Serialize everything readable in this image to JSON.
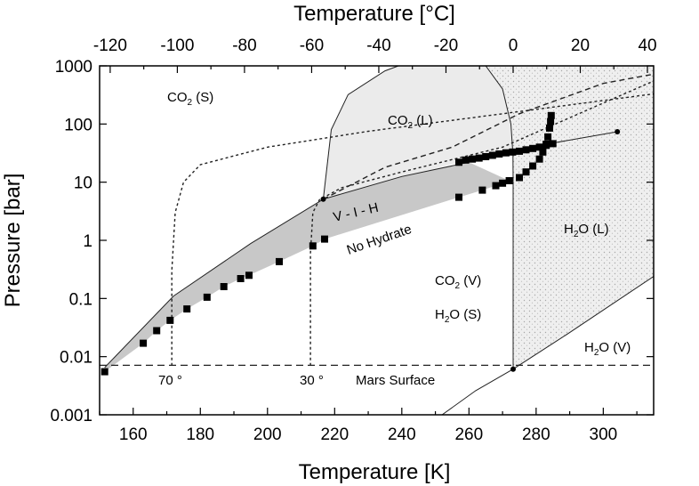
{
  "chart_data": {
    "type": "line",
    "top_xlabel": "Temperature [°C]",
    "xlabel": "Temperature [K]",
    "ylabel": "Pressure [bar]",
    "xlim": [
      150,
      315
    ],
    "ylim": [
      0.001,
      1000
    ],
    "yscale": "log",
    "x_ticks": [
      "160",
      "180",
      "200",
      "220",
      "240",
      "260",
      "280",
      "300"
    ],
    "top_ticks": [
      "-120",
      "-100",
      "-80",
      "-60",
      "-40",
      "-20",
      "0",
      "20",
      "40"
    ],
    "y_ticks": [
      "0.001",
      "0.01",
      "0.1",
      "1",
      "10",
      "100",
      "1000"
    ],
    "grid": false,
    "labels": {
      "co2_s_main": "CO",
      "co2_s_sub": "2",
      "co2_s_tail": " (S)",
      "co2_l_main": "CO",
      "co2_l_sub": "2",
      "co2_l_tail": " (L)",
      "vih": "V - I - H",
      "no_hydrate": "No Hydrate",
      "h2o_l_main": "H",
      "h2o_l_sub": "2",
      "h2o_l_tail": "O (L)",
      "co2_v_main": "CO",
      "co2_v_sub": "2",
      "co2_v_tail": " (V)",
      "h2o_s_main": "H",
      "h2o_s_sub": "2",
      "h2o_s_tail": "O (S)",
      "h2o_v_main": "H",
      "h2o_v_sub": "2",
      "h2o_v_tail": "O (V)",
      "mars_surface": "Mars Surface",
      "lat_70": "70 °",
      "lat_30": "30 °"
    },
    "series": [
      {
        "points": [
          [
            151.5,
            0.0055
          ],
          [
            163,
            0.017
          ],
          [
            167,
            0.028
          ],
          [
            171,
            0.042
          ],
          [
            176,
            0.066
          ],
          [
            182,
            0.105
          ],
          [
            187,
            0.16
          ],
          [
            192,
            0.22
          ],
          [
            194.5,
            0.25
          ],
          [
            203.5,
            0.43
          ],
          [
            213.5,
            0.8
          ],
          [
            217,
            1.05
          ],
          [
            257,
            5.5
          ],
          [
            264,
            7.3
          ],
          [
            268,
            8.7
          ],
          [
            270,
            9.6
          ],
          [
            272,
            10.6
          ]
        ]
      },
      {
        "points": [
          [
            257,
            22
          ],
          [
            259,
            24
          ],
          [
            261,
            25
          ],
          [
            263,
            26
          ],
          [
            265,
            27.5
          ],
          [
            267,
            29
          ],
          [
            269,
            30.5
          ],
          [
            271,
            32
          ],
          [
            273,
            33
          ],
          [
            275,
            34
          ],
          [
            277,
            36
          ],
          [
            279,
            38
          ],
          [
            281,
            40
          ],
          [
            283,
            43
          ],
          [
            285,
            46
          ],
          [
            275,
            12
          ],
          [
            277,
            15
          ],
          [
            279,
            19
          ],
          [
            281,
            25
          ],
          [
            282,
            33
          ],
          [
            283,
            45
          ],
          [
            283.5,
            60
          ],
          [
            284,
            85
          ],
          [
            284.3,
            110
          ],
          [
            284.5,
            140
          ]
        ]
      }
    ],
    "boundary_lines": [
      {
        "points": [
          [
            151.5,
            0.0065
          ],
          [
            172,
            0.11
          ],
          [
            195,
            0.88
          ],
          [
            216.6,
            5.1
          ],
          [
            240,
            12.5
          ],
          [
            260,
            22
          ],
          [
            283,
            45
          ],
          [
            304.2,
            73.8
          ]
        ]
      },
      {
        "points": [
          [
            216.6,
            5.1
          ],
          [
            219,
            80
          ],
          [
            224,
            320
          ],
          [
            235,
            820
          ],
          [
            239,
            1000
          ]
        ]
      },
      {
        "points": [
          [
            265,
            1000
          ],
          [
            270,
            400
          ],
          [
            272.5,
            100
          ],
          [
            273.1,
            30
          ],
          [
            273.15,
            10
          ]
        ]
      },
      {
        "points": [
          [
            273.15,
            10
          ],
          [
            273.16,
            0.0061
          ]
        ]
      },
      {
        "points": [
          [
            252,
            0.001
          ],
          [
            262,
            0.0026
          ],
          [
            273.16,
            0.0061
          ],
          [
            290,
            0.026
          ],
          [
            315,
            0.24
          ]
        ]
      },
      {
        "points": [
          [
            150,
            0.0071
          ],
          [
            315,
            0.0071
          ]
        ]
      }
    ],
    "co2_condensation_curves": [
      {
        "points": [
          [
            171.5,
            0.007
          ],
          [
            171.5,
            0.3
          ],
          [
            172.5,
            3
          ],
          [
            175,
            10
          ],
          [
            180,
            20
          ],
          [
            200,
            40
          ],
          [
            230,
            75
          ],
          [
            270,
            150
          ],
          [
            315,
            330
          ]
        ]
      },
      {
        "points": [
          [
            212.8,
            0.007
          ],
          [
            212.8,
            0.6
          ],
          [
            213.5,
            3
          ],
          [
            215.5,
            5
          ],
          [
            222,
            8
          ],
          [
            240,
            15
          ],
          [
            270,
            40
          ],
          [
            315,
            550
          ]
        ]
      },
      {
        "points": [
          [
            216.6,
            5.1
          ],
          [
            235,
            18
          ],
          [
            255,
            40
          ],
          [
            275,
            150
          ],
          [
            300,
            500
          ],
          [
            315,
            720
          ]
        ]
      }
    ],
    "marked_points": [
      [
        216.6,
        5.1
      ],
      [
        273.16,
        0.0061
      ],
      [
        304.2,
        73.8
      ]
    ]
  }
}
